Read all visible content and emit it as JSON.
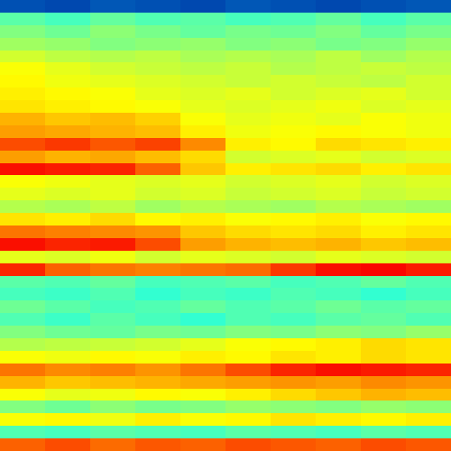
{
  "chart_data": {
    "type": "heatmap",
    "color": "Jet",
    "tick_labels": false,
    "zlim": [
      0,
      1
    ],
    "z": [
      [
        0.15,
        0.14,
        0.16,
        0.15,
        0.14,
        0.16,
        0.15,
        0.14,
        0.15,
        0.16
      ],
      [
        0.46,
        0.44,
        0.47,
        0.45,
        0.46,
        0.44,
        0.45,
        0.47,
        0.44,
        0.46
      ],
      [
        0.5,
        0.48,
        0.51,
        0.49,
        0.47,
        0.49,
        0.48,
        0.5,
        0.47,
        0.49
      ],
      [
        0.53,
        0.52,
        0.5,
        0.51,
        0.52,
        0.5,
        0.51,
        0.49,
        0.5,
        0.52
      ],
      [
        0.58,
        0.56,
        0.55,
        0.56,
        0.54,
        0.55,
        0.54,
        0.56,
        0.53,
        0.55
      ],
      [
        0.62,
        0.6,
        0.58,
        0.57,
        0.56,
        0.57,
        0.55,
        0.56,
        0.57,
        0.56
      ],
      [
        0.63,
        0.61,
        0.6,
        0.59,
        0.58,
        0.57,
        0.58,
        0.57,
        0.56,
        0.58
      ],
      [
        0.64,
        0.63,
        0.62,
        0.6,
        0.59,
        0.6,
        0.58,
        0.59,
        0.6,
        0.58
      ],
      [
        0.65,
        0.64,
        0.63,
        0.62,
        0.6,
        0.59,
        0.6,
        0.61,
        0.59,
        0.6
      ],
      [
        0.7,
        0.68,
        0.69,
        0.67,
        0.62,
        0.6,
        0.61,
        0.6,
        0.62,
        0.61
      ],
      [
        0.72,
        0.71,
        0.7,
        0.69,
        0.64,
        0.61,
        0.62,
        0.63,
        0.62,
        0.61
      ],
      [
        0.8,
        0.82,
        0.79,
        0.81,
        0.74,
        0.64,
        0.63,
        0.66,
        0.65,
        0.64
      ],
      [
        0.72,
        0.7,
        0.71,
        0.69,
        0.66,
        0.58,
        0.59,
        0.6,
        0.58,
        0.59
      ],
      [
        0.86,
        0.85,
        0.84,
        0.78,
        0.68,
        0.64,
        0.65,
        0.66,
        0.64,
        0.65
      ],
      [
        0.62,
        0.61,
        0.6,
        0.59,
        0.6,
        0.58,
        0.59,
        0.6,
        0.58,
        0.59
      ],
      [
        0.6,
        0.59,
        0.6,
        0.58,
        0.59,
        0.57,
        0.58,
        0.59,
        0.57,
        0.58
      ],
      [
        0.55,
        0.54,
        0.56,
        0.53,
        0.55,
        0.54,
        0.53,
        0.55,
        0.54,
        0.53
      ],
      [
        0.65,
        0.64,
        0.66,
        0.63,
        0.64,
        0.62,
        0.63,
        0.64,
        0.62,
        0.63
      ],
      [
        0.76,
        0.75,
        0.74,
        0.73,
        0.68,
        0.66,
        0.65,
        0.66,
        0.64,
        0.65
      ],
      [
        0.86,
        0.84,
        0.85,
        0.8,
        0.72,
        0.7,
        0.69,
        0.7,
        0.68,
        0.69
      ],
      [
        0.6,
        0.59,
        0.61,
        0.58,
        0.6,
        0.59,
        0.58,
        0.6,
        0.59,
        0.58
      ],
      [
        0.84,
        0.78,
        0.76,
        0.75,
        0.76,
        0.77,
        0.82,
        0.86,
        0.87,
        0.85
      ],
      [
        0.46,
        0.45,
        0.47,
        0.44,
        0.45,
        0.46,
        0.44,
        0.45,
        0.47,
        0.45
      ],
      [
        0.44,
        0.43,
        0.45,
        0.42,
        0.44,
        0.43,
        0.45,
        0.44,
        0.42,
        0.44
      ],
      [
        0.48,
        0.46,
        0.44,
        0.45,
        0.47,
        0.45,
        0.46,
        0.48,
        0.46,
        0.47
      ],
      [
        0.45,
        0.43,
        0.46,
        0.44,
        0.42,
        0.45,
        0.44,
        0.46,
        0.47,
        0.45
      ],
      [
        0.5,
        0.48,
        0.47,
        0.49,
        0.48,
        0.5,
        0.49,
        0.51,
        0.5,
        0.52
      ],
      [
        0.55,
        0.56,
        0.57,
        0.58,
        0.6,
        0.62,
        0.63,
        0.64,
        0.66,
        0.65
      ],
      [
        0.62,
        0.61,
        0.63,
        0.62,
        0.64,
        0.63,
        0.65,
        0.64,
        0.66,
        0.65
      ],
      [
        0.76,
        0.74,
        0.75,
        0.73,
        0.76,
        0.8,
        0.84,
        0.86,
        0.85,
        0.84
      ],
      [
        0.7,
        0.68,
        0.69,
        0.7,
        0.71,
        0.72,
        0.73,
        0.72,
        0.74,
        0.73
      ],
      [
        0.62,
        0.6,
        0.61,
        0.63,
        0.62,
        0.64,
        0.66,
        0.68,
        0.7,
        0.69
      ],
      [
        0.5,
        0.48,
        0.51,
        0.49,
        0.5,
        0.52,
        0.51,
        0.5,
        0.52,
        0.51
      ],
      [
        0.62,
        0.63,
        0.61,
        0.64,
        0.62,
        0.63,
        0.65,
        0.64,
        0.63,
        0.64
      ],
      [
        0.45,
        0.44,
        0.46,
        0.45,
        0.44,
        0.46,
        0.45,
        0.44,
        0.46,
        0.45
      ],
      [
        0.78,
        0.8,
        0.77,
        0.79,
        0.78,
        0.8,
        0.79,
        0.78,
        0.8,
        0.79
      ]
    ]
  }
}
